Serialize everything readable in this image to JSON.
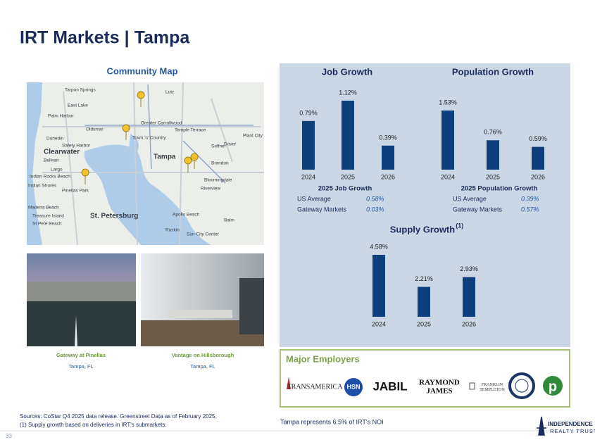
{
  "header": {
    "title": "IRT Markets | Tampa"
  },
  "map": {
    "title": "Community Map",
    "labels": [
      "Tarpon Springs",
      "Lutz",
      "East Lake",
      "Palm Harbor",
      "Greater Carrollwood",
      "Oldsmar",
      "Dunedin",
      "Town 'n' Country",
      "Temple Terrace",
      "Safety Harbor",
      "Seffner",
      "Plant City",
      "Dover",
      "Clearwater",
      "Tampa",
      "Belleair",
      "Largo",
      "Brandon",
      "Indian Rocks Beach",
      "Indian Shores",
      "Riverview",
      "Bloomingdale",
      "Pinellas Park",
      "Madeira Beach",
      "Treasure Island",
      "St. Petersburg",
      "St Pete Beach",
      "Apollo Beach",
      "Balm",
      "Ruskin",
      "Sun City Center"
    ]
  },
  "properties": [
    {
      "name": "Gateway at Pinellas",
      "location": "Tampa, FL"
    },
    {
      "name": "Vantage on Hillsborough",
      "location": "Tampa, FL"
    }
  ],
  "chart_data": [
    {
      "type": "bar",
      "title": "Job Growth",
      "categories": [
        "2024",
        "2025",
        "2026"
      ],
      "values": [
        0.79,
        1.12,
        0.39
      ],
      "value_labels": [
        "0.79%",
        "1.12%",
        "0.39%"
      ],
      "color": "#0d3f7d"
    },
    {
      "type": "bar",
      "title": "Population Growth",
      "categories": [
        "2024",
        "2025",
        "2026"
      ],
      "values": [
        1.53,
        0.76,
        0.59
      ],
      "value_labels": [
        "1.53%",
        "0.76%",
        "0.59%"
      ],
      "color": "#0d3f7d"
    },
    {
      "type": "bar",
      "title": "Supply Growth",
      "title_note": "(1)",
      "categories": [
        "2024",
        "2025",
        "2026"
      ],
      "values": [
        4.58,
        2.21,
        2.93
      ],
      "value_labels": [
        "4.58%",
        "2.21%",
        "2.93%"
      ],
      "color": "#0d3f7d"
    }
  ],
  "stats": [
    {
      "title": "2025 Job Growth",
      "rows": [
        [
          "US Average",
          "0.58%"
        ],
        [
          "Gateway Markets",
          "0.03%"
        ]
      ]
    },
    {
      "title": "2025 Population Growth",
      "rows": [
        [
          "US Average",
          "0.39%"
        ],
        [
          "Gateway Markets",
          "0.57%"
        ]
      ]
    }
  ],
  "employers": {
    "title": "Major Employers",
    "logos": [
      [
        "TRANSAMERICA"
      ],
      [
        "HSN"
      ],
      [
        "JABIL"
      ],
      [
        "RAYMOND",
        "JAMES"
      ],
      [
        "FRANKLIN",
        "TEMPLETON"
      ],
      [
        "p"
      ]
    ]
  },
  "footer": {
    "sources": "Sources: CoStar Q4 2025 data release. Greenstreet Data as of February 2025.",
    "note": "(1)  Supply growth based on deliveries in IRT's submarkets.",
    "noi": "Tampa represents 6.5% of IRT's NOI",
    "page": "33",
    "logo": [
      "INDEPENDENCE",
      "REALTY TRUST"
    ]
  }
}
